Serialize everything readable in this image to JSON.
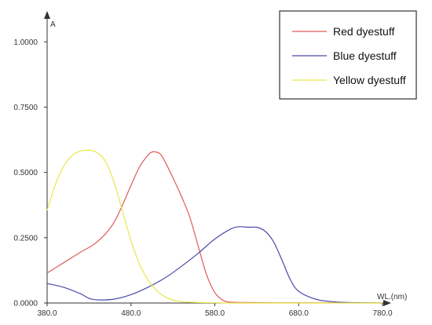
{
  "chart_data": {
    "type": "line",
    "xlabel": "WL.(nm)",
    "ylabel": "A",
    "xlim": [
      380,
      780
    ],
    "ylim": [
      0,
      1.1
    ],
    "x_ticks": [
      "380.0",
      "480.0",
      "580.0",
      "680.0",
      "780.0"
    ],
    "y_ticks": [
      "0.0000",
      "0.2500",
      "0.5000",
      "0.7500",
      "1.0000"
    ],
    "grid": false,
    "legend_position": "top-right",
    "series": [
      {
        "name": "Red dyestuff",
        "color": "#e05a5a",
        "x": [
          380,
          400,
          420,
          440,
          460,
          480,
          490,
          500,
          505,
          510,
          515,
          520,
          530,
          540,
          550,
          560,
          570,
          580,
          590,
          600,
          620,
          650,
          700,
          780
        ],
        "y": [
          0.115,
          0.155,
          0.195,
          0.235,
          0.31,
          0.45,
          0.52,
          0.565,
          0.578,
          0.578,
          0.57,
          0.545,
          0.48,
          0.41,
          0.33,
          0.22,
          0.11,
          0.04,
          0.01,
          0.003,
          0.002,
          0.001,
          0.001,
          0.0
        ]
      },
      {
        "name": "Blue dyestuff",
        "color": "#4a4aa8",
        "x": [
          380,
          400,
          420,
          430,
          440,
          460,
          480,
          500,
          520,
          540,
          560,
          580,
          600,
          610,
          620,
          630,
          640,
          650,
          660,
          670,
          680,
          700,
          720,
          740,
          760,
          780
        ],
        "y": [
          0.075,
          0.06,
          0.035,
          0.018,
          0.012,
          0.015,
          0.032,
          0.06,
          0.095,
          0.14,
          0.19,
          0.245,
          0.285,
          0.292,
          0.29,
          0.29,
          0.275,
          0.235,
          0.165,
          0.09,
          0.045,
          0.015,
          0.005,
          0.002,
          0.001,
          0.0
        ]
      },
      {
        "name": "Yellow dyestuff",
        "color": "#e8e84a",
        "x": [
          380,
          390,
          400,
          410,
          420,
          430,
          440,
          450,
          460,
          470,
          480,
          490,
          500,
          510,
          520,
          530,
          540,
          560,
          580,
          600,
          650,
          780
        ],
        "y": [
          0.355,
          0.455,
          0.525,
          0.565,
          0.582,
          0.585,
          0.575,
          0.54,
          0.46,
          0.35,
          0.24,
          0.15,
          0.09,
          0.05,
          0.025,
          0.012,
          0.005,
          0.002,
          0.001,
          0.0,
          0.0,
          0.0
        ]
      }
    ]
  }
}
